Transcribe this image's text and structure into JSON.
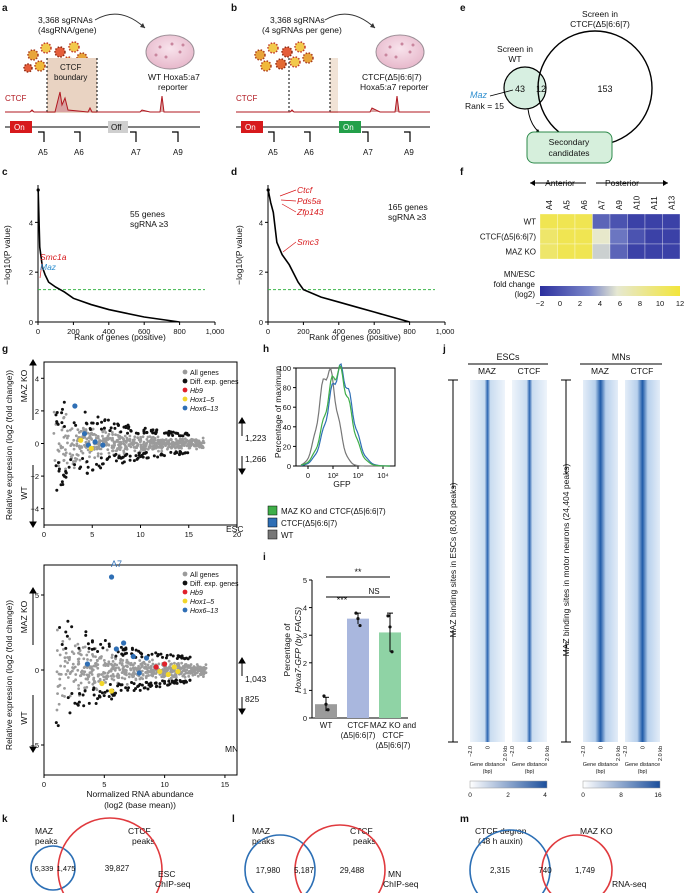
{
  "panel_labels": {
    "a": "a",
    "b": "b",
    "c": "c",
    "d": "d",
    "e": "e",
    "f": "f",
    "g": "g",
    "h": "h",
    "i": "i",
    "j": "j",
    "k": "k",
    "l": "l",
    "m": "m"
  },
  "panel_a": {
    "line1": "3,368 sgRNAs",
    "line2": "(4sgRNA/gene)",
    "reporter1": "WT Hoxa5:a7",
    "reporter2": "reporter",
    "ctcf": "CTCF",
    "boundary1": "CTCF",
    "boundary2": "boundary",
    "on": "On",
    "off": "Off",
    "genes": [
      "A5",
      "A6",
      "A7",
      "A9"
    ]
  },
  "panel_b": {
    "line1": "3,368 sgRNAs",
    "line2": "(4 sgRNAs per gene)",
    "reporter1": "CTCF(Δ5|6:6|7)",
    "reporter2": "Hoxa5:a7 reporter",
    "ctcf": "CTCF",
    "on1": "On",
    "on2": "On",
    "genes": [
      "A5",
      "A6",
      "A7",
      "A9"
    ]
  },
  "panel_c": {
    "ylabel": "−log10(P value)",
    "xlabel": "Rank of genes (positive)",
    "note1": "55 genes",
    "note2": "sgRNA ≥3",
    "hits": [
      "Smc1a",
      "Maz"
    ],
    "xticks": [
      "0",
      "200",
      "400",
      "600",
      "800",
      "1,000"
    ],
    "yticks": [
      "0",
      "2",
      "4"
    ]
  },
  "panel_d": {
    "ylabel": "−log10(P value)",
    "xlabel": "Rank of genes (positive)",
    "note1": "165 genes",
    "note2": "sgRNA ≥3",
    "hits": [
      "Ctcf",
      "Pds5a",
      "Zfp143",
      "Smc3"
    ],
    "xticks": [
      "0",
      "200",
      "400",
      "600",
      "800",
      "1,000"
    ],
    "yticks": [
      "0",
      "2",
      "4"
    ]
  },
  "panel_e": {
    "left_title1": "Screen in",
    "left_title2": "WT",
    "right_title1": "Screen in",
    "right_title2": "CTCF(Δ5|6:6|7)",
    "left_only": "43",
    "overlap": "12",
    "right_only": "153",
    "maz": "Maz",
    "rank": "Rank = 15",
    "secondary1": "Secondary",
    "secondary2": "candidates"
  },
  "panel_f": {
    "anterior": "Anterior",
    "posterior": "Posterior",
    "columns": [
      "A4",
      "A5",
      "A6",
      "A7",
      "A9",
      "A10",
      "A11",
      "A13"
    ],
    "rows": [
      "WT",
      "CTCF(Δ5|6:6|7)",
      "MAZ KO"
    ],
    "scale_label1": "MN/ESC",
    "scale_label2": "fold change",
    "scale_label3": "(log2)",
    "scale_ticks": [
      "−2",
      "0",
      "2",
      "4",
      "6",
      "8",
      "10",
      "12"
    ],
    "values": [
      [
        11,
        11,
        11,
        1,
        0,
        -1,
        -1,
        -1
      ],
      [
        10,
        11,
        11,
        6,
        2,
        0,
        -1,
        -1
      ],
      [
        10,
        11,
        11,
        5,
        1,
        -1,
        -1,
        -1
      ]
    ]
  },
  "panel_g": {
    "ylabel": "Relative expression (log2 (fold change))",
    "xlabel1": "Normalized RNA abundance",
    "xlabel2": "(log2 (base mean))",
    "up_label": "MAZ KO",
    "down_label": "WT",
    "legend": [
      "All genes",
      "Diff. exp. genes",
      "Hb9",
      "Hox1–5",
      "Hox6–13"
    ],
    "legend_colors": [
      "#9b9b9b",
      "#111111",
      "#e0202a",
      "#f2d62b",
      "#2f6fb5"
    ],
    "esc": {
      "up": "1,223",
      "down": "1,266",
      "tag": "ESC",
      "xticks": [
        "0",
        "5",
        "10",
        "15",
        "20"
      ],
      "yticks": [
        "−4",
        "−2",
        "0",
        "2",
        "4"
      ]
    },
    "mn": {
      "up": "1,043",
      "down": "825",
      "tag": "MN",
      "a7": "A7",
      "xticks": [
        "0",
        "5",
        "10",
        "15"
      ],
      "yticks": [
        "−5",
        "0",
        "5"
      ]
    }
  },
  "panel_h": {
    "ylabel": "Percentage of maximum",
    "xlabel": "GFP",
    "yticks": [
      "0",
      "20",
      "40",
      "60",
      "80",
      "100"
    ],
    "xticks": [
      "0",
      "10²",
      "10³",
      "10⁴"
    ],
    "legend": [
      "MAZ KO and CTCF(Δ5|6:6|7)",
      "CTCF(Δ5|6:6|7)",
      "WT"
    ],
    "legend_colors": [
      "#3fae49",
      "#2f6fb5",
      "#777777"
    ]
  },
  "panel_i": {
    "ylabel1": "Percentage of",
    "ylabel2": "Hoxa7-GFP (by FACS)",
    "yticks": [
      "0",
      "1",
      "2",
      "3",
      "4",
      "5"
    ],
    "bars": [
      "WT",
      "CTCF (Δ5|6:6|7)",
      "MAZ KO and CTCF (Δ5|6:6|7)"
    ],
    "sig": [
      "**",
      "***",
      "NS"
    ]
  },
  "panel_j": {
    "esc_title": "ESCs",
    "mn_title": "MNs",
    "cols": [
      "MAZ",
      "CTCF",
      "MAZ",
      "CTCF"
    ],
    "esc_side": "MAZ binding sites in ESCs (8,008 peaks)",
    "mn_side": "MAZ binding sites in motor neurons (24,404 peaks)",
    "xtick_labels": [
      "−2.0",
      "0",
      "2.0 kb"
    ],
    "gene_distance": "Gene distance",
    "bp": "(bp)",
    "scale1": [
      "0",
      "2",
      "4"
    ],
    "scale2": [
      "0",
      "8",
      "16"
    ]
  },
  "panel_k": {
    "left_title1": "MAZ",
    "left_title2": "peaks",
    "right_title1": "CTCF",
    "right_title2": "peaks",
    "left": "6,339",
    "overlap": "1,475",
    "right": "39,827",
    "tag1": "ESC",
    "tag2": "ChIP-seq"
  },
  "panel_l": {
    "left_title1": "MAZ",
    "left_title2": "peaks",
    "right_title1": "CTCF",
    "right_title2": "peaks",
    "left": "17,980",
    "overlap": "5,187",
    "right": "29,488",
    "tag1": "MN",
    "tag2": "ChIP-seq"
  },
  "panel_m": {
    "left_title1": "CTCF degron",
    "left_title2": "(48 h auxin)",
    "right_title1": "MAZ KO",
    "left": "2,315",
    "overlap": "740",
    "right": "1,749",
    "tag1": "RNA-seq"
  },
  "chart_data": [
    {
      "type": "line",
      "title": "Screen in WT",
      "xlabel": "Rank of genes (positive)",
      "ylabel": "−log10(P value)",
      "x": [
        1,
        10,
        25,
        40,
        60,
        100,
        150,
        200,
        300,
        400,
        500,
        600,
        700,
        800
      ],
      "y": [
        5.3,
        3.0,
        2.2,
        1.9,
        1.6,
        1.4,
        1.2,
        0.95,
        0.7,
        0.5,
        0.35,
        0.2,
        0.1,
        0.0
      ],
      "ylim": [
        0,
        5.5
      ],
      "xlim": [
        0,
        1000
      ],
      "threshold": 1.3
    },
    {
      "type": "line",
      "title": "Screen in CTCF(Δ5|6:6|7)",
      "xlabel": "Rank of genes (positive)",
      "ylabel": "−log10(P value)",
      "x": [
        1,
        15,
        30,
        50,
        80,
        120,
        170,
        200,
        300,
        400,
        500,
        600,
        700,
        800
      ],
      "y": [
        5.3,
        4.8,
        4.4,
        3.2,
        2.7,
        2.3,
        1.6,
        1.3,
        1.0,
        0.8,
        0.6,
        0.4,
        0.2,
        0.0
      ],
      "ylim": [
        0,
        5.5
      ],
      "xlim": [
        0,
        1000
      ],
      "threshold": 1.3
    },
    {
      "type": "bar",
      "title": "Percentage of Hoxa7-GFP (by FACS)",
      "categories": [
        "WT",
        "CTCF (Δ5|6:6|7)",
        "MAZ KO and CTCF (Δ5|6:6|7)"
      ],
      "values": [
        0.5,
        3.6,
        3.1
      ],
      "ylim": [
        0,
        5
      ],
      "colors": [
        "#9b9b9b",
        "#a9b7de",
        "#8fd3a5"
      ]
    }
  ]
}
